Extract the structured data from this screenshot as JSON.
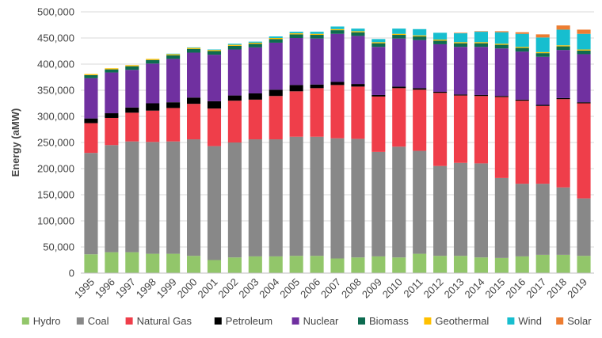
{
  "chart_data": {
    "type": "bar",
    "stacked": true,
    "title": "",
    "xlabel": "",
    "ylabel": "Energy (aMW)",
    "ylim": [
      0,
      500000
    ],
    "yticks": [
      0,
      50000,
      100000,
      150000,
      200000,
      250000,
      300000,
      350000,
      400000,
      450000,
      500000
    ],
    "ytick_labels": [
      "0",
      "50,000",
      "100,000",
      "150,000",
      "200,000",
      "250,000",
      "300,000",
      "350,000",
      "400,000",
      "450,000",
      "500,000"
    ],
    "grid": "horizontal",
    "legend_position": "bottom",
    "categories": [
      "1995",
      "1996",
      "1997",
      "1998",
      "1999",
      "2000",
      "2001",
      "2002",
      "2003",
      "2004",
      "2005",
      "2006",
      "2007",
      "2008",
      "2009",
      "2010",
      "2011",
      "2012",
      "2013",
      "2014",
      "2015",
      "2016",
      "2017",
      "2018",
      "2019"
    ],
    "series": [
      {
        "name": "Hydro",
        "color": "#92c66a",
        "values": [
          36000,
          40000,
          40000,
          37000,
          37000,
          33000,
          25000,
          30000,
          32000,
          32000,
          33000,
          33000,
          28000,
          30000,
          32000,
          30000,
          37000,
          33000,
          33000,
          30000,
          29000,
          32000,
          35000,
          35000,
          33000
        ]
      },
      {
        "name": "Coal",
        "color": "#888888",
        "values": [
          194000,
          205000,
          212000,
          214000,
          215000,
          223000,
          218000,
          220000,
          224000,
          224000,
          228000,
          228000,
          230000,
          227000,
          200000,
          212000,
          197000,
          172000,
          178000,
          180000,
          153000,
          139000,
          136000,
          129000,
          110000
        ]
      },
      {
        "name": "Natural Gas",
        "color": "#ef3e4a",
        "values": [
          57000,
          52000,
          55000,
          60000,
          64000,
          68000,
          72000,
          80000,
          76000,
          83000,
          87000,
          93000,
          102000,
          100000,
          106000,
          112000,
          117000,
          140000,
          129000,
          129000,
          155000,
          159000,
          149000,
          169000,
          182000
        ]
      },
      {
        "name": "Petroleum",
        "color": "#000000",
        "values": [
          9000,
          9000,
          10000,
          14000,
          11000,
          12000,
          14000,
          10000,
          12000,
          12000,
          12000,
          7000,
          6000,
          5000,
          3000,
          3000,
          3000,
          2000,
          2000,
          2000,
          2000,
          2000,
          2000,
          2000,
          2000
        ]
      },
      {
        "name": "Nuclear",
        "color": "#7030a0",
        "values": [
          77000,
          78000,
          72000,
          76000,
          83000,
          86000,
          89000,
          88000,
          88000,
          90000,
          90000,
          88000,
          92000,
          92000,
          92000,
          92000,
          92000,
          91000,
          91000,
          92000,
          91000,
          92000,
          92000,
          92000,
          92000
        ]
      },
      {
        "name": "Biomass",
        "color": "#0d6b50",
        "values": [
          6000,
          6000,
          7000,
          7000,
          7000,
          7000,
          7000,
          7000,
          7000,
          7000,
          7000,
          7000,
          7000,
          7000,
          7000,
          7000,
          7000,
          7000,
          7000,
          7000,
          7000,
          7000,
          7000,
          7000,
          7000
        ]
      },
      {
        "name": "Geothermal",
        "color": "#ffc000",
        "values": [
          2000,
          2000,
          2000,
          2000,
          2000,
          2000,
          2000,
          2000,
          2000,
          2000,
          2000,
          2000,
          2000,
          2000,
          2000,
          2000,
          2000,
          2000,
          2000,
          2000,
          2000,
          2000,
          2000,
          2000,
          2000
        ]
      },
      {
        "name": "Wind",
        "color": "#17becf",
        "values": [
          0,
          0,
          0,
          0,
          1000,
          1000,
          1000,
          2000,
          2000,
          3000,
          3000,
          4000,
          5000,
          5000,
          6000,
          10000,
          12000,
          13000,
          17000,
          20000,
          22000,
          25000,
          28000,
          30000,
          30000
        ]
      },
      {
        "name": "Solar",
        "color": "#ed7d31",
        "values": [
          0,
          0,
          0,
          0,
          0,
          0,
          0,
          0,
          0,
          0,
          0,
          0,
          0,
          0,
          0,
          0,
          0,
          0,
          1000,
          1000,
          2000,
          3000,
          6000,
          8000,
          8000
        ]
      }
    ]
  }
}
